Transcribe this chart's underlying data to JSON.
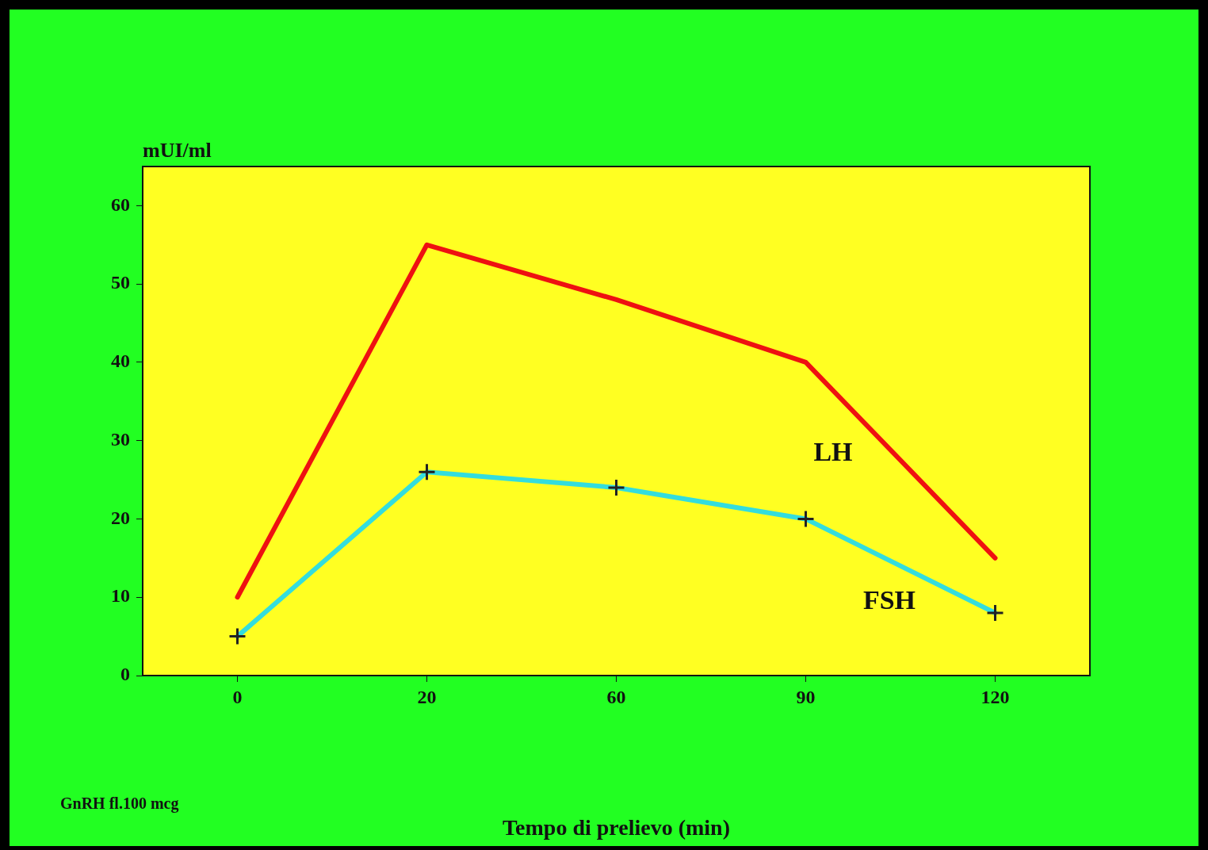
{
  "chart_data": {
    "type": "line",
    "xlabel": "Tempo di prelievo (min)",
    "ylabel": "mUI/ml",
    "categories": [
      "0",
      "20",
      "60",
      "90",
      "120"
    ],
    "series": [
      {
        "name": "LH",
        "color": "#ee1111",
        "values": [
          10,
          55,
          48,
          40,
          15
        ],
        "marker": "none"
      },
      {
        "name": "FSH",
        "color": "#33dddd",
        "values": [
          5,
          26,
          24,
          20,
          8
        ],
        "marker": "cross"
      }
    ],
    "ylim": [
      0,
      65
    ],
    "yticks": [
      0,
      10,
      20,
      30,
      40,
      50,
      60
    ],
    "grid": false,
    "legend": false,
    "line_style": "solid",
    "annotations": [
      "GnRH fl.100 mcg"
    ]
  }
}
